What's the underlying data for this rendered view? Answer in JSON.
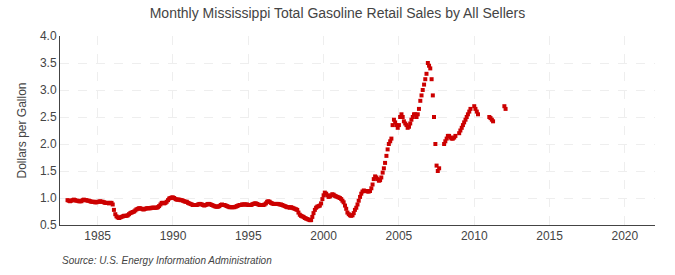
{
  "chart_data": {
    "type": "scatter",
    "title": "Monthly Mississippi Total Gasoline Retail Sales by All Sellers",
    "ylabel": "Dollars per Gallon",
    "annotations": [
      "Source: U.S. Energy Information Administration"
    ],
    "color": "#CC0000",
    "marker": "square",
    "grid": true,
    "xlim": [
      1982.5,
      2022.0
    ],
    "ylim": [
      0.5,
      4.0
    ],
    "xticks": [
      1985,
      1990,
      1995,
      2000,
      2005,
      2010,
      2015,
      2020
    ],
    "yticks": [
      0.5,
      {
        "value": 1.0,
        "label": "1.0"
      },
      1.5,
      {
        "value": 2.0,
        "label": "2.0"
      },
      2.5,
      {
        "value": 3.0,
        "label": "3.0"
      },
      3.5,
      {
        "value": 4.0,
        "label": "4.0"
      }
    ],
    "x": [
      1983.0,
      1983.08,
      1983.17,
      1983.25,
      1983.33,
      1983.42,
      1983.5,
      1983.58,
      1983.67,
      1983.75,
      1983.83,
      1983.92,
      1984.0,
      1984.08,
      1984.17,
      1984.25,
      1984.33,
      1984.42,
      1984.5,
      1984.58,
      1984.67,
      1984.75,
      1984.83,
      1984.92,
      1985.0,
      1985.08,
      1985.17,
      1985.25,
      1985.33,
      1985.42,
      1985.5,
      1985.58,
      1985.67,
      1985.75,
      1985.83,
      1985.92,
      1986.0,
      1986.08,
      1986.17,
      1986.25,
      1986.33,
      1986.42,
      1986.5,
      1986.58,
      1986.67,
      1986.75,
      1986.83,
      1986.92,
      1987.0,
      1987.08,
      1987.17,
      1987.25,
      1987.33,
      1987.42,
      1987.5,
      1987.58,
      1987.67,
      1987.75,
      1987.83,
      1987.92,
      1988.0,
      1988.08,
      1988.17,
      1988.25,
      1988.33,
      1988.42,
      1988.5,
      1988.58,
      1988.67,
      1988.75,
      1988.83,
      1988.92,
      1989.0,
      1989.08,
      1989.17,
      1989.25,
      1989.33,
      1989.42,
      1989.5,
      1989.58,
      1989.67,
      1989.75,
      1989.83,
      1989.92,
      1990.0,
      1990.08,
      1990.17,
      1990.25,
      1990.33,
      1990.42,
      1990.5,
      1990.58,
      1990.67,
      1990.75,
      1990.83,
      1990.92,
      1991.0,
      1991.08,
      1991.17,
      1991.25,
      1991.33,
      1991.42,
      1991.5,
      1991.58,
      1991.67,
      1991.75,
      1991.83,
      1991.92,
      1992.0,
      1992.08,
      1992.17,
      1992.25,
      1992.33,
      1992.42,
      1992.5,
      1992.58,
      1992.67,
      1992.75,
      1992.83,
      1992.92,
      1993.0,
      1993.08,
      1993.17,
      1993.25,
      1993.33,
      1993.42,
      1993.5,
      1993.58,
      1993.67,
      1993.75,
      1993.83,
      1993.92,
      1994.0,
      1994.08,
      1994.17,
      1994.25,
      1994.33,
      1994.42,
      1994.5,
      1994.58,
      1994.67,
      1994.75,
      1994.83,
      1994.92,
      1995.0,
      1995.08,
      1995.17,
      1995.25,
      1995.33,
      1995.42,
      1995.5,
      1995.58,
      1995.67,
      1995.75,
      1995.83,
      1995.92,
      1996.0,
      1996.08,
      1996.17,
      1996.25,
      1996.33,
      1996.42,
      1996.5,
      1996.58,
      1996.67,
      1996.75,
      1996.83,
      1996.92,
      1997.0,
      1997.08,
      1997.17,
      1997.25,
      1997.33,
      1997.42,
      1997.5,
      1997.58,
      1997.67,
      1997.75,
      1997.83,
      1997.92,
      1998.0,
      1998.08,
      1998.17,
      1998.25,
      1998.33,
      1998.42,
      1998.5,
      1998.58,
      1998.67,
      1998.75,
      1998.83,
      1998.92,
      1999.0,
      1999.08,
      1999.17,
      1999.25,
      1999.33,
      1999.42,
      1999.5,
      1999.58,
      1999.67,
      1999.75,
      1999.83,
      1999.92,
      2000.0,
      2000.08,
      2000.17,
      2000.25,
      2000.33,
      2000.42,
      2000.5,
      2000.58,
      2000.67,
      2000.75,
      2000.83,
      2000.92,
      2001.0,
      2001.08,
      2001.17,
      2001.25,
      2001.33,
      2001.42,
      2001.5,
      2001.58,
      2001.67,
      2001.75,
      2001.83,
      2001.92,
      2002.0,
      2002.08,
      2002.17,
      2002.25,
      2002.33,
      2002.42,
      2002.5,
      2002.58,
      2002.67,
      2002.75,
      2002.83,
      2002.92,
      2003.0,
      2003.08,
      2003.17,
      2003.25,
      2003.33,
      2003.42,
      2003.5,
      2003.58,
      2003.67,
      2003.75,
      2003.83,
      2003.92,
      2004.0,
      2004.08,
      2004.17,
      2004.25,
      2004.33,
      2004.42,
      2004.5,
      2004.58,
      2004.67,
      2004.75,
      2004.83,
      2004.92,
      2005.0,
      2005.08,
      2005.17,
      2005.25,
      2005.33,
      2005.42,
      2005.5,
      2005.58,
      2005.67,
      2005.75,
      2005.83,
      2005.92,
      2006.0,
      2006.08,
      2006.17,
      2006.25,
      2006.33,
      2006.42,
      2006.5,
      2006.58,
      2006.67,
      2006.75,
      2006.83,
      2006.92,
      2007.0,
      2007.08,
      2007.17,
      2007.25,
      2007.33,
      2007.42,
      2007.5,
      2007.58,
      2007.67,
      2008.0,
      2008.08,
      2008.17,
      2008.25,
      2008.33,
      2008.42,
      2008.5,
      2008.58,
      2008.67,
      2008.75,
      2009.0,
      2009.08,
      2009.17,
      2009.25,
      2009.33,
      2009.42,
      2009.5,
      2009.58,
      2009.67,
      2009.75,
      2010.0,
      2010.08,
      2010.17,
      2010.25,
      2011.0,
      2011.08,
      2011.17,
      2011.25,
      2012.0,
      2012.08
    ],
    "values": [
      0.96,
      0.95,
      0.94,
      0.95,
      0.96,
      0.97,
      0.96,
      0.95,
      0.95,
      0.94,
      0.94,
      0.94,
      0.96,
      0.97,
      0.96,
      0.96,
      0.95,
      0.95,
      0.94,
      0.93,
      0.93,
      0.93,
      0.92,
      0.92,
      0.93,
      0.93,
      0.94,
      0.93,
      0.93,
      0.92,
      0.91,
      0.91,
      0.91,
      0.9,
      0.91,
      0.91,
      0.88,
      0.78,
      0.7,
      0.66,
      0.64,
      0.63,
      0.64,
      0.65,
      0.66,
      0.67,
      0.67,
      0.67,
      0.68,
      0.7,
      0.72,
      0.73,
      0.74,
      0.75,
      0.77,
      0.79,
      0.8,
      0.81,
      0.81,
      0.8,
      0.79,
      0.79,
      0.8,
      0.81,
      0.81,
      0.81,
      0.81,
      0.82,
      0.82,
      0.82,
      0.82,
      0.82,
      0.83,
      0.85,
      0.88,
      0.91,
      0.91,
      0.9,
      0.91,
      0.93,
      0.96,
      0.99,
      1.0,
      1.01,
      1.01,
      1.0,
      0.98,
      0.97,
      0.97,
      0.97,
      0.96,
      0.96,
      0.95,
      0.94,
      0.93,
      0.93,
      0.91,
      0.9,
      0.89,
      0.88,
      0.87,
      0.87,
      0.87,
      0.87,
      0.88,
      0.89,
      0.89,
      0.88,
      0.87,
      0.86,
      0.87,
      0.88,
      0.89,
      0.89,
      0.88,
      0.87,
      0.86,
      0.85,
      0.84,
      0.84,
      0.84,
      0.85,
      0.87,
      0.88,
      0.87,
      0.87,
      0.86,
      0.85,
      0.84,
      0.83,
      0.83,
      0.83,
      0.83,
      0.83,
      0.84,
      0.85,
      0.86,
      0.87,
      0.87,
      0.88,
      0.88,
      0.88,
      0.88,
      0.88,
      0.87,
      0.87,
      0.87,
      0.88,
      0.89,
      0.9,
      0.9,
      0.89,
      0.88,
      0.87,
      0.87,
      0.87,
      0.87,
      0.88,
      0.9,
      0.93,
      0.94,
      0.93,
      0.91,
      0.9,
      0.89,
      0.89,
      0.89,
      0.89,
      0.89,
      0.88,
      0.88,
      0.87,
      0.86,
      0.85,
      0.84,
      0.83,
      0.83,
      0.82,
      0.83,
      0.82,
      0.81,
      0.8,
      0.79,
      0.78,
      0.73,
      0.69,
      0.67,
      0.66,
      0.65,
      0.63,
      0.62,
      0.61,
      0.6,
      0.59,
      0.59,
      0.65,
      0.72,
      0.78,
      0.82,
      0.84,
      0.85,
      0.86,
      0.9,
      0.98,
      1.05,
      1.1,
      1.08,
      1.05,
      1.02,
      1.03,
      1.05,
      1.07,
      1.06,
      1.04,
      1.03,
      1.02,
      1.01,
      1.0,
      0.98,
      0.95,
      0.92,
      0.86,
      0.8,
      0.73,
      0.7,
      0.68,
      0.67,
      0.68,
      0.72,
      0.78,
      0.82,
      0.88,
      0.95,
      1.02,
      1.08,
      1.12,
      1.14,
      1.13,
      1.13,
      1.12,
      1.12,
      1.13,
      1.18,
      1.25,
      1.35,
      1.4,
      1.38,
      1.35,
      1.32,
      1.33,
      1.38,
      1.47,
      1.55,
      1.65,
      1.78,
      1.9,
      2.0,
      2.05,
      2.1,
      2.35,
      2.45,
      2.4,
      2.35,
      2.3,
      2.35,
      2.5,
      2.55,
      2.5,
      2.42,
      2.38,
      2.35,
      2.3,
      2.32,
      2.38,
      2.45,
      2.5,
      2.55,
      2.55,
      2.5,
      2.55,
      2.65,
      2.8,
      2.9,
      3.0,
      3.1,
      3.2,
      3.3,
      3.5,
      3.45,
      3.4,
      3.2,
      2.9,
      2.5,
      2.0,
      1.6,
      1.5,
      1.55,
      2.0,
      2.05,
      2.1,
      2.15,
      2.15,
      2.12,
      2.1,
      2.1,
      2.12,
      2.15,
      2.2,
      2.25,
      2.3,
      2.35,
      2.4,
      2.45,
      2.5,
      2.55,
      2.6,
      2.65,
      2.7,
      2.65,
      2.6,
      2.55,
      2.5,
      2.48,
      2.45,
      2.42,
      2.7,
      2.65
    ]
  }
}
